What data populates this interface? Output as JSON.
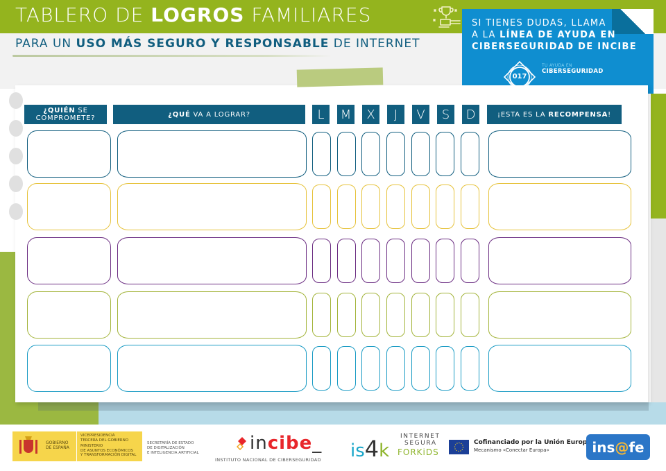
{
  "header": {
    "title_pre": "TABLERO DE ",
    "title_bold": "LOGROS",
    "title_post": " FAMILIARES",
    "subtitle_pre": "PARA UN ",
    "subtitle_bold": "USO MÁS SEGURO Y RESPONSABLE",
    "subtitle_post": " DE INTERNET",
    "trophy_icon": "trophy-hand-icon"
  },
  "helpline": {
    "line1": "SI TIENES DUDAS, LLAMA",
    "line2_pre": "A LA ",
    "line2_bold": "LÍNEA DE AYUDA EN",
    "line3_bold": "CIBERSEGURIDAD DE INCIBE",
    "badge_number": "017",
    "tag_small": "TU AYUDA EN",
    "tag_big": "CIBERSEGURIDAD",
    "color": "#0f8ed0"
  },
  "table": {
    "headers": {
      "who_bold": "¿QUIÉN",
      "who_rest": " SE",
      "who_line2": "COMPROMETE?",
      "what_bold": "¿QUÉ",
      "what_rest": " VA A LOGRAR?",
      "reward_pre": "¡ESTA ES LA ",
      "reward_bold": "RECOMPENSA",
      "reward_post": "!"
    },
    "days": [
      "L",
      "M",
      "X",
      "J",
      "V",
      "S",
      "D"
    ],
    "header_color": "#115e7f",
    "rows": [
      {
        "color": "#115e7f"
      },
      {
        "color": "#e6c23a"
      },
      {
        "color": "#6b2d82"
      },
      {
        "color": "#a3b43a"
      },
      {
        "color": "#1a9bc4"
      }
    ]
  },
  "footer": {
    "gobierno_line1": "GOBIERNO",
    "gobierno_line2": "DE ESPAÑA",
    "vice_line1": "VICEPRESIDENCIA",
    "vice_line2": "TERCERA DEL GOBIERNO",
    "vice_line3": "MINISTERIO",
    "vice_line4": "DE ASUNTOS ECONÓMICOS",
    "vice_line5": "Y TRANSFORMACIÓN DIGITAL",
    "sec_line1": "SECRETARÍA DE ESTADO",
    "sec_line2": "DE DIGITALIZACIÓN",
    "sec_line3": "E INTELIGENCIA ARTIFICIAL",
    "incibe_pre": "in",
    "incibe_bold": "cibe",
    "incibe_post": "_",
    "incibe_sub": "INSTITUTO NACIONAL DE CIBERSEGURIDAD",
    "is4k_is": "is",
    "is4k_4": "4",
    "is4k_k": "k",
    "is4k_t1": "INTERNET",
    "is4k_t2": "SEGURA",
    "is4k_t3": "FORKiDS",
    "eu_line1": "Cofinanciado por la Unión Europea",
    "eu_line2": "Mecanismo «Conectar Europa»",
    "insafe_pre": "ins",
    "insafe_at": "@",
    "insafe_post": "fe"
  }
}
